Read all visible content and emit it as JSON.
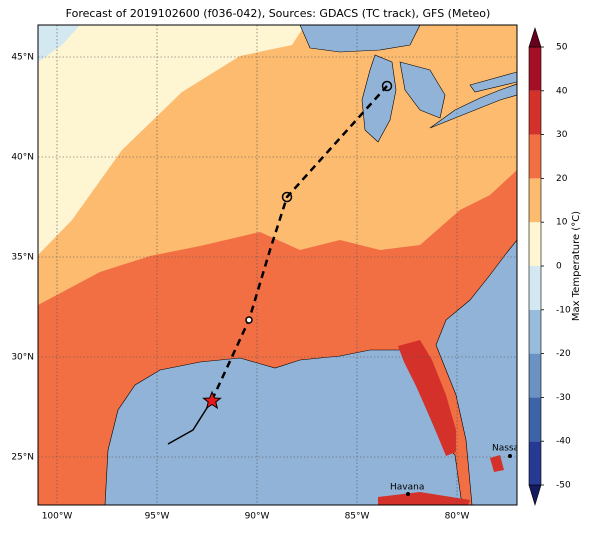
{
  "title": "Forecast of 2019102600 (f036-042), Sources: GDACS (TC track), GFS (Meteo)",
  "map": {
    "lon_ticks": [
      {
        "value": -100,
        "label": "100°W"
      },
      {
        "value": -95,
        "label": "95°W"
      },
      {
        "value": -90,
        "label": "90°W"
      },
      {
        "value": -85,
        "label": "85°W"
      },
      {
        "value": -80,
        "label": "80°W"
      }
    ],
    "lat_ticks": [
      {
        "value": 25,
        "label": "25°N"
      },
      {
        "value": 30,
        "label": "30°N"
      },
      {
        "value": 35,
        "label": "35°N"
      },
      {
        "value": 40,
        "label": "40°N"
      },
      {
        "value": 45,
        "label": "45°N"
      }
    ],
    "places": [
      {
        "name": "Havana"
      },
      {
        "name": "Nassau"
      }
    ]
  },
  "colorbar": {
    "label": "Max Temperature (°C)",
    "ticks": [
      -50,
      -40,
      -30,
      -20,
      -10,
      0,
      10,
      20,
      30,
      40,
      50
    ],
    "colors": [
      "#141b5e",
      "#263a93",
      "#3d63a8",
      "#6a93c4",
      "#98bcdb",
      "#d4e8f2",
      "#fef5d3",
      "#fdbb70",
      "#f26f43",
      "#d4312a",
      "#a50f26",
      "#67001f"
    ]
  }
}
